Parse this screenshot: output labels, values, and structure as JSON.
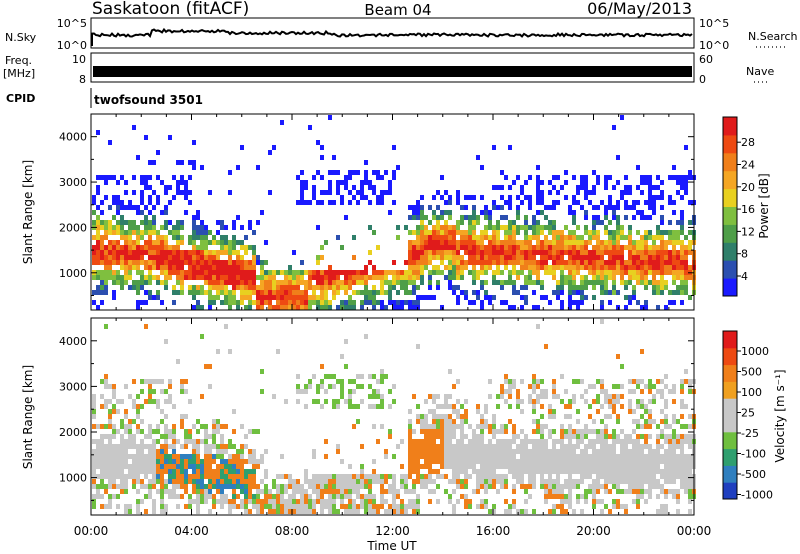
{
  "header": {
    "station": "Saskatoon (fitACF)",
    "beam": "Beam 04",
    "date": "06/May/2013"
  },
  "panels": {
    "nsky": {
      "label": "N.Sky",
      "ytick_top": "10^5",
      "ytick_bottom": "10^0"
    },
    "nsearch": {
      "label": "N.Search",
      "ytick_top": "10^5",
      "ytick_bottom": "10^0"
    },
    "freq": {
      "label_line1": "Freq.",
      "label_line2": "[MHz]",
      "ytick_top": "10",
      "ytick_bottom": "8"
    },
    "nave": {
      "label": "Nave",
      "ytick_top": "60",
      "ytick_bottom": "0"
    },
    "cpid": {
      "label": "CPID",
      "value": "twofsound 3501"
    }
  },
  "chart_data": [
    {
      "type": "heatmap",
      "title": "",
      "xlabel": "",
      "ylabel": "Slant Range [km]",
      "xlim": [
        "00:00",
        "24:00"
      ],
      "ylim": [
        180,
        4500
      ],
      "yticks": [
        "1000",
        "2000",
        "3000",
        "4000"
      ],
      "colorbar": {
        "label": "Power [dB]",
        "ticks": [
          "4",
          "8",
          "12",
          "16",
          "20",
          "24",
          "28"
        ],
        "colors": [
          "#1a1aff",
          "#2b4fb0",
          "#2f7f6a",
          "#4e9e48",
          "#7fbf3f",
          "#e8d020",
          "#f5a623",
          "#f07f1a",
          "#ee4a12",
          "#e01b1b"
        ]
      }
    },
    {
      "type": "heatmap",
      "title": "",
      "xlabel": "Time UT",
      "ylabel": "Slant Range [km]",
      "xlim": [
        "00:00",
        "24:00"
      ],
      "ylim": [
        180,
        4500
      ],
      "xticks": [
        "00:00",
        "04:00",
        "08:00",
        "12:00",
        "16:00",
        "20:00",
        "00:00"
      ],
      "yticks": [
        "1000",
        "2000",
        "3000",
        "4000"
      ],
      "colorbar": {
        "label": "Velocity [m s⁻¹]",
        "ticks": [
          "1000",
          "500",
          "100",
          "25",
          "-25",
          "-100",
          "-500",
          "-1000"
        ],
        "colors": [
          "#1f3fbf",
          "#2f7fbf",
          "#2f9f6f",
          "#6fbf3f",
          "#c8c8c8",
          "#c8c8c8",
          "#f0a020",
          "#f07f1a",
          "#ee4a12",
          "#e01b1b"
        ]
      }
    }
  ]
}
